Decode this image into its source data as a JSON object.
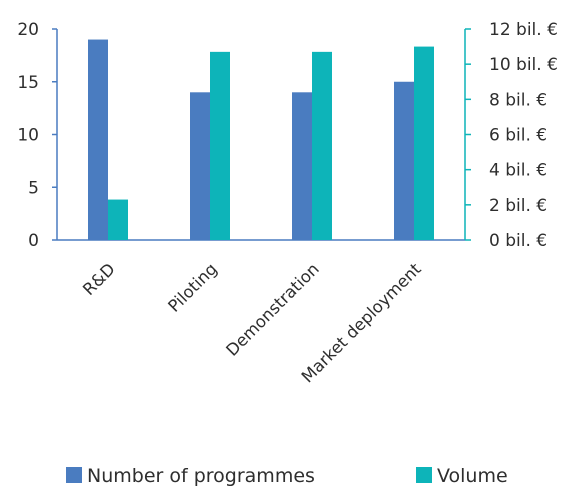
{
  "chart_data": {
    "type": "bar",
    "categories": [
      "R&D",
      "Piloting",
      "Demonstration",
      "Market deployment"
    ],
    "series": [
      {
        "name": "Number of programmes",
        "axis": "left",
        "color": "#4a7cc0",
        "values": [
          19,
          14,
          14,
          15
        ]
      },
      {
        "name": "Volume",
        "axis": "right",
        "color": "#0db4b9",
        "values": [
          2.3,
          10.7,
          10.7,
          11.0
        ]
      }
    ],
    "y_left": {
      "ylim": [
        0,
        20
      ],
      "ticks": [
        "0",
        "5",
        "10",
        "15",
        "20"
      ],
      "tick_values": [
        0,
        5,
        10,
        15,
        20
      ]
    },
    "y_right": {
      "ylim": [
        0,
        12
      ],
      "ticks": [
        "0 bil. €",
        "2 bil. €",
        "4 bil. €",
        "6 bil. €",
        "8 bil. €",
        "10 bil. €",
        "12 bil. €"
      ],
      "tick_values": [
        0,
        2,
        4,
        6,
        8,
        10,
        12
      ],
      "color": "#0db4b9"
    },
    "axis_color": "#4a7cc0",
    "grid": false,
    "legend": {
      "position": "bottom",
      "entries": [
        "Number of programmes",
        "Volume"
      ]
    }
  }
}
